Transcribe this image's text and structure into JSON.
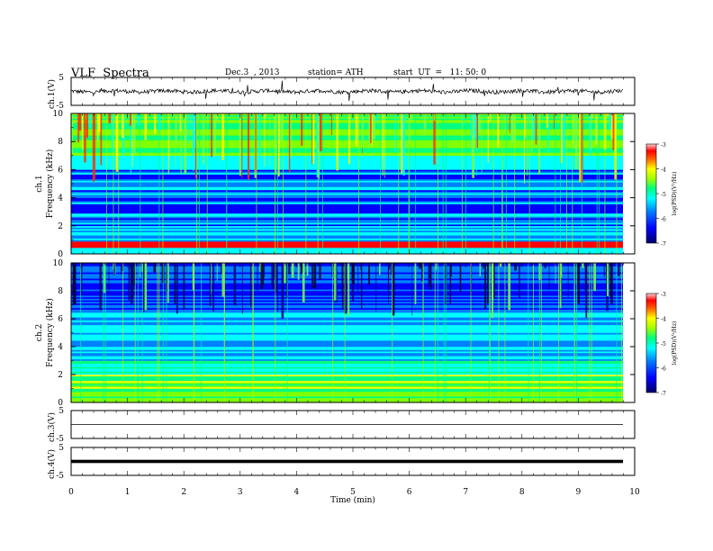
{
  "header": {
    "title": "VLF  Spectra",
    "date": "Dec.3  , 2013",
    "station": "station= ATH",
    "start": "start  UT  =   11: 50: 0"
  },
  "chart_data": [
    {
      "type": "line",
      "panel": "ch1-waveform",
      "ylabel": "ch.1(V)",
      "ylim": [
        -5,
        5
      ],
      "yticks": [
        "5",
        "-5"
      ],
      "xlim": [
        0,
        10
      ],
      "baseline": 0,
      "description_values": "noisy waveform centered near 0 V with spikes to about ±3 V"
    },
    {
      "type": "heatmap",
      "panel": "ch1-spectrogram",
      "ylabel": "ch.1\nFrequency  (kHz)",
      "ylabel_lines": [
        "ch.1",
        "Frequency  (kHz)"
      ],
      "ylim": [
        0,
        10
      ],
      "yticks": [
        "0",
        "2",
        "4",
        "6",
        "8",
        "10"
      ],
      "xlim": [
        0,
        9.8
      ],
      "colorbar": {
        "label": "log(PSD)(V²/Hz)",
        "range": [
          -7,
          -3
        ],
        "ticks": [
          "-3",
          "-4",
          "-5",
          "-6",
          "-7"
        ]
      }
    },
    {
      "type": "heatmap",
      "panel": "ch2-spectrogram",
      "ylabel": "ch.2\nFrequency  (kHz)",
      "ylabel_lines": [
        "ch.2",
        "Frequency  (kHz)"
      ],
      "ylim": [
        0,
        10
      ],
      "yticks": [
        "0",
        "2",
        "4",
        "6",
        "8",
        "10"
      ],
      "xlim": [
        0,
        9.8
      ],
      "colorbar": {
        "label": "log(PSD)(V²/Hz)",
        "range": [
          -7,
          -3
        ],
        "ticks": [
          "-3",
          "-4",
          "-5",
          "-6",
          "-7"
        ]
      }
    },
    {
      "type": "line",
      "panel": "ch3-waveform",
      "ylabel": "ch.3(V)",
      "ylim": [
        -5,
        5
      ],
      "yticks": [
        "5",
        "-5"
      ],
      "baseline": 0
    },
    {
      "type": "line",
      "panel": "ch4-waveform",
      "ylabel": "ch.4(V)",
      "ylim": [
        -5,
        5
      ],
      "yticks": [
        "5",
        "-5"
      ],
      "baseline": 0
    }
  ],
  "xaxis": {
    "label": "Time  (min)",
    "ticks": [
      "0",
      "1",
      "2",
      "3",
      "4",
      "5",
      "6",
      "7",
      "8",
      "9",
      "10"
    ],
    "range": [
      0,
      10
    ]
  },
  "colors": {
    "colorscale": [
      "#000080",
      "#0000ff",
      "#0080ff",
      "#00ffff",
      "#00ff80",
      "#80ff00",
      "#ffff00",
      "#ff8000",
      "#ff0000",
      "#ffc0c0"
    ]
  }
}
